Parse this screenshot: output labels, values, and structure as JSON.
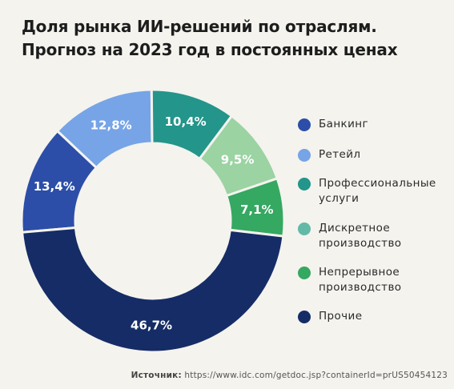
{
  "title_line1": "Доля рынка ИИ-решений по отраслям.",
  "title_line2": "Прогноз на 2023 год в постоянных ценах",
  "source_label": "Источник:",
  "source_url": "https://www.idc.com/getdoc.jsp?containerId=prUS50454123",
  "chart_data": {
    "type": "pie",
    "title": "Доля рынка ИИ-решений по отраслям. Прогноз на 2023 год в постоянных ценах",
    "legend_position": "right",
    "slices": [
      {
        "name": "Банкинг",
        "value": 13.4,
        "label": "13,4%",
        "color": "#2c4ea8",
        "legend_color": "#2c4ea8"
      },
      {
        "name": "Ретейл",
        "value": 12.8,
        "label": "12,8%",
        "color": "#76a4e6",
        "legend_color": "#76a4e6"
      },
      {
        "name": "Профессиональные услуги",
        "value": 10.4,
        "label": "10,4%",
        "color": "#23958a",
        "legend_color": "#23958a"
      },
      {
        "name": "Дискретное производство",
        "value": 9.5,
        "label": "9,5%",
        "color": "#9bd3a2",
        "legend_color": "#62b9a6"
      },
      {
        "name": "Непрерывное производство",
        "value": 7.1,
        "label": "7,1%",
        "color": "#35a861",
        "legend_color": "#35a861"
      },
      {
        "name": "Прочие",
        "value": 46.7,
        "label": "46,7%",
        "color": "#152c66",
        "legend_color": "#152c66"
      }
    ]
  },
  "legend": [
    {
      "lines": [
        "Банкинг"
      ]
    },
    {
      "lines": [
        "Ретейл"
      ]
    },
    {
      "lines": [
        "Профессиональные",
        "услуги"
      ]
    },
    {
      "lines": [
        "Дискретное",
        "производство"
      ]
    },
    {
      "lines": [
        "Непрерывное",
        "производство"
      ]
    },
    {
      "lines": [
        "Прочие"
      ]
    }
  ]
}
